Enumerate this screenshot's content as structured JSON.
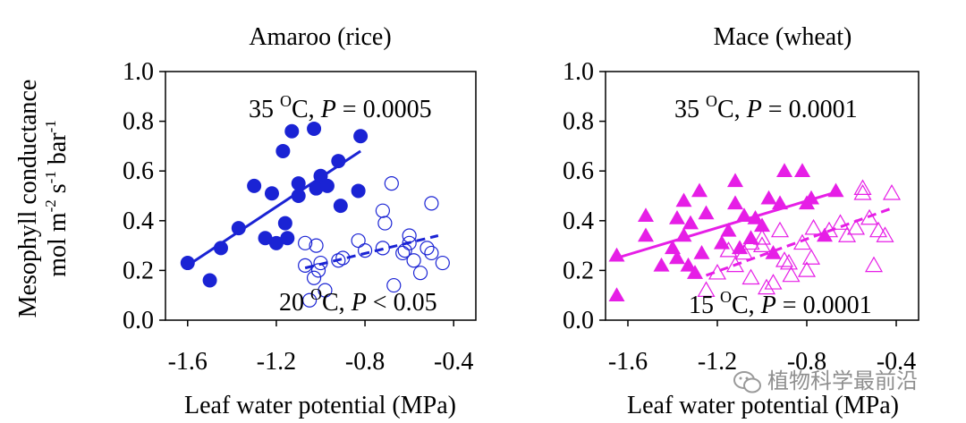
{
  "figure": {
    "ylabel_line1": "Mesophyll conductance",
    "ylabel_line2_main": "mol m",
    "ylabel_line2_sup1": "-2",
    "ylabel_line2_mid": " s",
    "ylabel_line2_sup2": "-1",
    "ylabel_line2_end": " bar",
    "ylabel_line2_sup3": "-1",
    "xlabel": "Leaf water potential (MPa)"
  },
  "watermark": {
    "text": "植物科学最前沿",
    "icon": "wechat-icon"
  },
  "colors": {
    "blue": "#1a23d4",
    "magenta": "#e61ee6"
  },
  "chart_data": [
    {
      "type": "scatter",
      "title": "Amaroo (rice)",
      "xlim": [
        -1.7,
        -0.3
      ],
      "ylim": [
        0,
        1.0
      ],
      "xticks": [
        "-1.6",
        "-1.2",
        "-0.8",
        "-0.4"
      ],
      "xtick_values": [
        -1.6,
        -1.2,
        -0.8,
        -0.4
      ],
      "yticks": [
        "0.0",
        "0.2",
        "0.4",
        "0.6",
        "0.8",
        "1.0"
      ],
      "ytick_values": [
        0,
        0.2,
        0.4,
        0.6,
        0.8,
        1.0
      ],
      "series": [
        {
          "marker": "filled-circle",
          "color": "#1a23d4",
          "points": [
            [
              -1.6,
              0.23
            ],
            [
              -1.5,
              0.16
            ],
            [
              -1.45,
              0.29
            ],
            [
              -1.37,
              0.37
            ],
            [
              -1.3,
              0.54
            ],
            [
              -1.25,
              0.33
            ],
            [
              -1.22,
              0.51
            ],
            [
              -1.2,
              0.31
            ],
            [
              -1.17,
              0.68
            ],
            [
              -1.16,
              0.39
            ],
            [
              -1.15,
              0.33
            ],
            [
              -1.13,
              0.76
            ],
            [
              -1.1,
              0.55
            ],
            [
              -1.1,
              0.5
            ],
            [
              -1.03,
              0.77
            ],
            [
              -1.02,
              0.53
            ],
            [
              -1.0,
              0.58
            ],
            [
              -0.97,
              0.54
            ],
            [
              -0.92,
              0.64
            ],
            [
              -0.91,
              0.46
            ],
            [
              -0.82,
              0.74
            ],
            [
              -0.83,
              0.52
            ]
          ],
          "fit": [
            [
              -1.6,
              0.22
            ],
            [
              -0.82,
              0.68
            ]
          ],
          "fit_style": "solid",
          "annotation_main": "35 ",
          "annotation_sup": "O",
          "annotation_unit": "C, ",
          "annotation_p": "P",
          "annotation_rest": " = 0.0005"
        },
        {
          "marker": "open-circle",
          "color": "#1a23d4",
          "points": [
            [
              -1.07,
              0.22
            ],
            [
              -1.07,
              0.31
            ],
            [
              -1.05,
              0.08
            ],
            [
              -1.03,
              0.17
            ],
            [
              -1.02,
              0.3
            ],
            [
              -1.01,
              0.2
            ],
            [
              -1.0,
              0.23
            ],
            [
              -0.98,
              0.12
            ],
            [
              -0.92,
              0.24
            ],
            [
              -0.9,
              0.25
            ],
            [
              -0.83,
              0.32
            ],
            [
              -0.8,
              0.28
            ],
            [
              -0.72,
              0.29
            ],
            [
              -0.72,
              0.44
            ],
            [
              -0.71,
              0.39
            ],
            [
              -0.68,
              0.55
            ],
            [
              -0.67,
              0.14
            ],
            [
              -0.63,
              0.27
            ],
            [
              -0.62,
              0.28
            ],
            [
              -0.6,
              0.31
            ],
            [
              -0.6,
              0.34
            ],
            [
              -0.58,
              0.24
            ],
            [
              -0.55,
              0.19
            ],
            [
              -0.52,
              0.29
            ],
            [
              -0.5,
              0.27
            ],
            [
              -0.5,
              0.47
            ],
            [
              -0.45,
              0.23
            ]
          ],
          "fit": [
            [
              -1.07,
              0.21
            ],
            [
              -0.47,
              0.34
            ]
          ],
          "fit_style": "dashed",
          "annotation_main": "20 ",
          "annotation_sup": "O",
          "annotation_unit": "C, ",
          "annotation_p": "P",
          "annotation_rest": " < 0.05"
        }
      ]
    },
    {
      "type": "scatter",
      "title": "Mace (wheat)",
      "xlim": [
        -1.7,
        -0.3
      ],
      "ylim": [
        0,
        1.0
      ],
      "xticks": [
        "-1.6",
        "-1.2",
        "-0.8",
        "-0.4"
      ],
      "xtick_values": [
        -1.6,
        -1.2,
        -0.8,
        -0.4
      ],
      "yticks": [
        "0.0",
        "0.2",
        "0.4",
        "0.6",
        "0.8",
        "1.0"
      ],
      "ytick_values": [
        0,
        0.2,
        0.4,
        0.6,
        0.8,
        1.0
      ],
      "series": [
        {
          "marker": "filled-triangle",
          "color": "#e61ee6",
          "points": [
            [
              -1.65,
              0.26
            ],
            [
              -1.65,
              0.1
            ],
            [
              -1.52,
              0.42
            ],
            [
              -1.52,
              0.34
            ],
            [
              -1.45,
              0.22
            ],
            [
              -1.4,
              0.29
            ],
            [
              -1.38,
              0.41
            ],
            [
              -1.38,
              0.25
            ],
            [
              -1.35,
              0.48
            ],
            [
              -1.35,
              0.34
            ],
            [
              -1.33,
              0.22
            ],
            [
              -1.32,
              0.39
            ],
            [
              -1.3,
              0.19
            ],
            [
              -1.28,
              0.52
            ],
            [
              -1.27,
              0.27
            ],
            [
              -1.25,
              0.43
            ],
            [
              -1.18,
              0.31
            ],
            [
              -1.15,
              0.36
            ],
            [
              -1.12,
              0.56
            ],
            [
              -1.12,
              0.47
            ],
            [
              -1.1,
              0.29
            ],
            [
              -1.08,
              0.42
            ],
            [
              -1.05,
              0.33
            ],
            [
              -1.03,
              0.41
            ],
            [
              -1.0,
              0.38
            ],
            [
              -0.97,
              0.49
            ],
            [
              -0.95,
              0.27
            ],
            [
              -0.92,
              0.47
            ],
            [
              -0.9,
              0.6
            ],
            [
              -0.82,
              0.6
            ],
            [
              -0.8,
              0.47
            ],
            [
              -0.78,
              0.49
            ],
            [
              -0.72,
              0.34
            ],
            [
              -0.67,
              0.52
            ]
          ],
          "fit": [
            [
              -1.65,
              0.25
            ],
            [
              -0.65,
              0.52
            ]
          ],
          "fit_style": "solid",
          "annotation_main": "35 ",
          "annotation_sup": "O",
          "annotation_unit": "C, ",
          "annotation_p": "P",
          "annotation_rest": " = 0.0001"
        },
        {
          "marker": "open-triangle",
          "color": "#e61ee6",
          "points": [
            [
              -1.25,
              0.12
            ],
            [
              -1.2,
              0.19
            ],
            [
              -1.15,
              0.28
            ],
            [
              -1.12,
              0.22
            ],
            [
              -1.08,
              0.27
            ],
            [
              -1.05,
              0.17
            ],
            [
              -1.05,
              0.31
            ],
            [
              -1.0,
              0.3
            ],
            [
              -1.0,
              0.33
            ],
            [
              -0.98,
              0.13
            ],
            [
              -0.95,
              0.15
            ],
            [
              -0.92,
              0.36
            ],
            [
              -0.9,
              0.24
            ],
            [
              -0.88,
              0.23
            ],
            [
              -0.87,
              0.18
            ],
            [
              -0.82,
              0.31
            ],
            [
              -0.8,
              0.2
            ],
            [
              -0.78,
              0.25
            ],
            [
              -0.77,
              0.37
            ],
            [
              -0.7,
              0.36
            ],
            [
              -0.65,
              0.39
            ],
            [
              -0.62,
              0.34
            ],
            [
              -0.58,
              0.37
            ],
            [
              -0.55,
              0.53
            ],
            [
              -0.55,
              0.51
            ],
            [
              -0.52,
              0.41
            ],
            [
              -0.5,
              0.22
            ],
            [
              -0.48,
              0.36
            ],
            [
              -0.45,
              0.34
            ],
            [
              -0.42,
              0.51
            ]
          ],
          "fit": [
            [
              -1.25,
              0.18
            ],
            [
              -0.42,
              0.45
            ]
          ],
          "fit_style": "dashed",
          "annotation_main": "15 ",
          "annotation_sup": "O",
          "annotation_unit": "C, ",
          "annotation_p": "P",
          "annotation_rest": " = 0.0001"
        }
      ]
    }
  ]
}
